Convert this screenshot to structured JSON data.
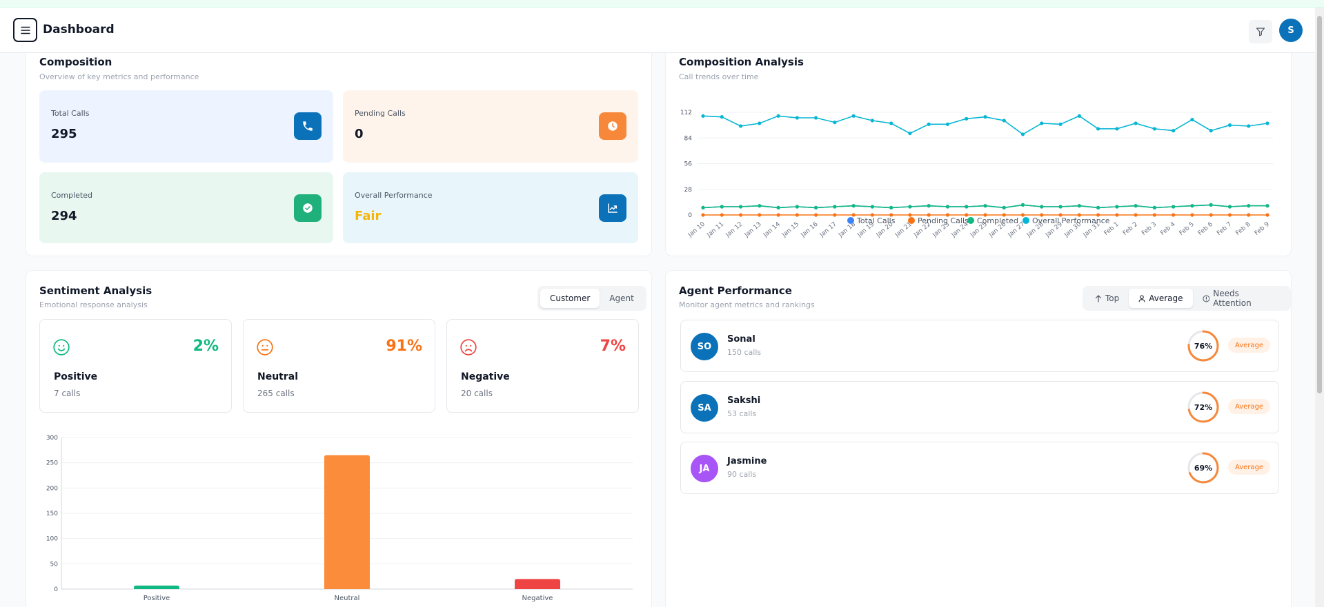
{
  "header": {
    "title": "Dashboard",
    "avatar_initial": "S"
  },
  "composition": {
    "title": "Composition",
    "subtitle": "Overview of key metrics and performance",
    "metrics": [
      {
        "label": "Total Calls",
        "value": "295",
        "bg": "#eef4ff",
        "icon_bg": "#0b72b9",
        "icon": "phone-icon"
      },
      {
        "label": "Pending Calls",
        "value": "0",
        "bg": "#fef4ec",
        "icon_bg": "#f7883a",
        "icon": "clock-icon"
      },
      {
        "label": "Completed",
        "value": "294",
        "bg": "#e9f7f1",
        "icon_bg": "#1fb07b",
        "icon": "check-circle-icon"
      },
      {
        "label": "Overall Performance",
        "value": "Fair",
        "bg": "#e8f6fb",
        "icon_bg": "#0b72b9",
        "icon": "trend-chart-icon",
        "value_color": "#f5b50a"
      }
    ]
  },
  "analysis": {
    "title": "Composition Analysis",
    "subtitle": "Call trends over time"
  },
  "chart_data": [
    {
      "type": "line",
      "x": [
        "Jan 10",
        "Jan 11",
        "Jan 12",
        "Jan 13",
        "Jan 14",
        "Jan 15",
        "Jan 16",
        "Jan 17",
        "Jan 18",
        "Jan 19",
        "Jan 20",
        "Jan 21",
        "Jan 22",
        "Jan 23",
        "Jan 24",
        "Jan 25",
        "Jan 26",
        "Jan 27",
        "Jan 28",
        "Jan 29",
        "Jan 30",
        "Jan 31",
        "Feb 1",
        "Feb 2",
        "Feb 3",
        "Feb 4",
        "Feb 5",
        "Feb 6",
        "Feb 7",
        "Feb 8",
        "Feb 9"
      ],
      "yticks": [
        0,
        28,
        56,
        84,
        112
      ],
      "ylim": [
        0,
        112
      ],
      "grid": true,
      "legend_position": "bottom",
      "series": [
        {
          "name": "Total Calls",
          "color": "#3b82f6",
          "values": [
            8,
            9,
            9,
            10,
            8,
            9,
            8,
            9,
            10,
            9,
            8,
            9,
            10,
            9,
            9,
            10,
            8,
            11,
            9,
            9,
            10,
            8,
            9,
            10,
            8,
            9,
            10,
            11,
            9,
            10,
            10
          ]
        },
        {
          "name": "Pending Calls",
          "color": "#f97316",
          "values": [
            0,
            0,
            0,
            0,
            0,
            0,
            0,
            0,
            0,
            0,
            0,
            0,
            0,
            0,
            0,
            0,
            0,
            0,
            0,
            0,
            0,
            0,
            0,
            0,
            0,
            0,
            0,
            0,
            0,
            0,
            0
          ]
        },
        {
          "name": "Completed",
          "color": "#10b981",
          "values": [
            8,
            9,
            9,
            10,
            8,
            9,
            8,
            9,
            10,
            9,
            8,
            9,
            10,
            9,
            9,
            10,
            8,
            11,
            9,
            9,
            10,
            8,
            9,
            10,
            8,
            9,
            10,
            11,
            9,
            10,
            10
          ]
        },
        {
          "name": "Overall Performance",
          "color": "#06b6d4",
          "values": [
            108,
            107,
            97,
            100,
            108,
            106,
            106,
            101,
            108,
            103,
            100,
            89,
            99,
            99,
            105,
            107,
            103,
            88,
            100,
            99,
            108,
            94,
            94,
            100,
            94,
            92,
            104,
            92,
            98,
            97,
            100
          ]
        }
      ]
    },
    {
      "type": "bar",
      "categories": [
        "Positive",
        "Neutral",
        "Negative"
      ],
      "values": [
        7,
        265,
        20
      ],
      "colors": [
        "#10b981",
        "#fb8c3c",
        "#ef4444"
      ],
      "yticks": [
        0,
        50,
        100,
        150,
        200,
        250,
        300
      ],
      "ylim": [
        0,
        300
      ],
      "grid": true
    }
  ],
  "sentiment": {
    "title": "Sentiment Analysis",
    "subtitle": "Emotional response analysis",
    "toggle": [
      "Customer",
      "Agent"
    ],
    "cards": [
      {
        "name": "Positive",
        "pct": "2%",
        "calls": "7 calls",
        "color": "#10b981",
        "icon": "smile-icon"
      },
      {
        "name": "Neutral",
        "pct": "91%",
        "calls": "265 calls",
        "color": "#f97316",
        "icon": "neutral-face-icon"
      },
      {
        "name": "Negative",
        "pct": "7%",
        "calls": "20 calls",
        "color": "#ef4444",
        "icon": "frown-icon"
      }
    ]
  },
  "agents": {
    "title": "Agent Performance",
    "subtitle": "Monitor agent metrics and rankings",
    "filters": [
      "Top",
      "Average",
      "Needs Attention"
    ],
    "list": [
      {
        "initials": "SO",
        "name": "Sonal",
        "calls": "150 calls",
        "score": "76%",
        "score_fraction": 0.76,
        "badge": "Average",
        "color": "#0b72b9"
      },
      {
        "initials": "SA",
        "name": "Sakshi",
        "calls": "53 calls",
        "score": "72%",
        "score_fraction": 0.72,
        "badge": "Average",
        "color": "#0b72b9"
      },
      {
        "initials": "JA",
        "name": "Jasmine",
        "calls": "90 calls",
        "score": "69%",
        "score_fraction": 0.69,
        "badge": "Average",
        "color": "#a855f7"
      }
    ]
  }
}
